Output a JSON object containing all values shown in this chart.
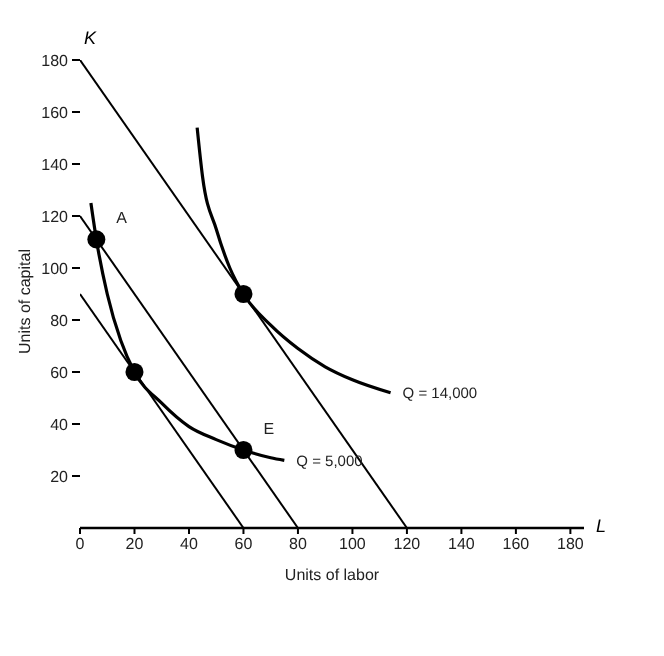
{
  "chart_data": {
    "type": "line",
    "xlabel": "Units of labor",
    "ylabel": "Units of capital",
    "xlim": [
      0,
      185
    ],
    "ylim": [
      0,
      180
    ],
    "xticks": [
      0,
      20,
      40,
      60,
      80,
      100,
      120,
      140,
      160,
      180
    ],
    "yticks": [
      20,
      40,
      60,
      80,
      100,
      120,
      140,
      160,
      180
    ],
    "marker": "none",
    "line_style": "solid",
    "grid": false,
    "series": [
      {
        "color": "#000000",
        "x": [
          0,
          120
        ],
        "values": [
          180,
          0
        ]
      },
      {
        "color": "#000000",
        "x": [
          0,
          80
        ],
        "values": [
          120,
          0
        ]
      },
      {
        "color": "#000000",
        "x": [
          0,
          60
        ],
        "values": [
          90,
          0
        ]
      },
      {
        "color": "#000000",
        "x": [
          4,
          6,
          10,
          15,
          20,
          30,
          40,
          50,
          60,
          70,
          75
        ],
        "values": [
          125,
          111,
          90,
          72,
          60,
          48,
          39,
          34,
          30,
          27,
          26
        ]
      },
      {
        "color": "#000000",
        "x": [
          43,
          45,
          50,
          55,
          60,
          70,
          80,
          90,
          100,
          114
        ],
        "values": [
          154,
          135,
          115,
          100,
          90,
          78,
          69,
          62,
          57,
          52
        ]
      },
      {
        "type": "scatter",
        "marker": "circle",
        "color": "#000000",
        "x": [
          6,
          20,
          60,
          60
        ],
        "values": [
          111,
          60,
          30,
          90
        ]
      }
    ],
    "annotations": [
      "K",
      "L",
      {
        "text": "A",
        "x": 6,
        "y": 111
      },
      {
        "text": "E",
        "x": 60,
        "y": 30
      },
      {
        "text": "Q = 5,000",
        "x": 75,
        "y": 26
      },
      {
        "text": "Q = 14,000",
        "x": 114,
        "y": 52
      }
    ]
  }
}
